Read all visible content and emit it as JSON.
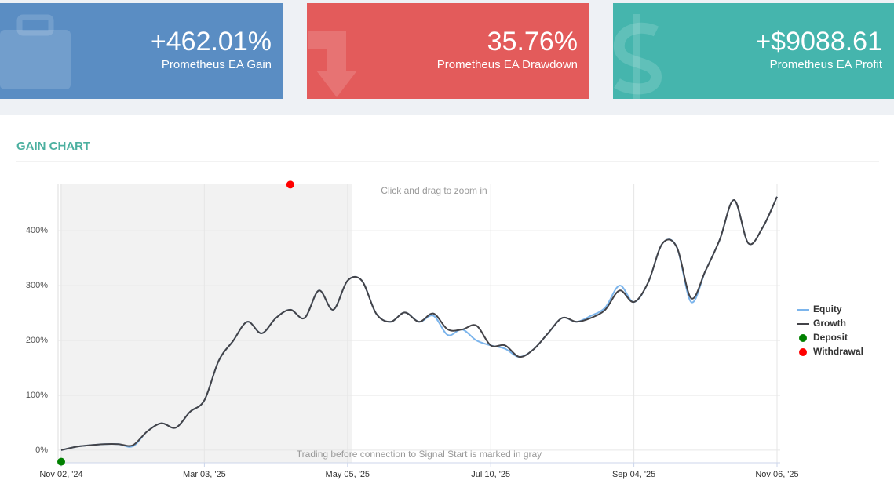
{
  "cards": [
    {
      "value": "+462.01%",
      "label": "Prometheus EA Gain",
      "color": "#5a8dc3"
    },
    {
      "value": "35.76%",
      "label": "Prometheus EA Drawdown",
      "color": "#e35b5b"
    },
    {
      "value": "+$9088.61",
      "label": "Prometheus EA Profit",
      "color": "#45b5ad"
    }
  ],
  "chart_data": {
    "type": "line",
    "title": "GAIN CHART",
    "annotations": [
      "Click and drag to zoom in",
      "Trading before connection to Signal Start is marked in gray"
    ],
    "categories": [
      "Nov 02, '24",
      null,
      null,
      null,
      null,
      null,
      null,
      null,
      null,
      null,
      "Mar 03, '25",
      null,
      null,
      null,
      null,
      null,
      null,
      null,
      null,
      null,
      "May 05, '25",
      null,
      null,
      null,
      null,
      null,
      null,
      null,
      null,
      null,
      "Jul 10, '25",
      null,
      null,
      null,
      null,
      null,
      null,
      null,
      null,
      null,
      "Sep 04, '25",
      null,
      null,
      null,
      null,
      null,
      null,
      null,
      null,
      null,
      "Nov 06, '25"
    ],
    "shaded": [
      0,
      20.3
    ],
    "series": [
      {
        "name": "Equity",
        "color": "#7cb5ec",
        "style": "line",
        "values": [
          0,
          6,
          9,
          11,
          11,
          7,
          34,
          49,
          41,
          70,
          91,
          163,
          199,
          234,
          213,
          241,
          256,
          241,
          291,
          256,
          309,
          309,
          249,
          234,
          251,
          234,
          245,
          210,
          220,
          200,
          191,
          185,
          170,
          184,
          213,
          241,
          234,
          245,
          260,
          300,
          270,
          306,
          377,
          370,
          270,
          327,
          384,
          456,
          377,
          406,
          462
        ]
      },
      {
        "name": "Growth",
        "color": "#434348",
        "style": "line",
        "values": [
          0,
          6,
          9,
          11,
          11,
          9,
          34,
          49,
          41,
          70,
          91,
          163,
          199,
          234,
          213,
          241,
          256,
          241,
          291,
          256,
          309,
          309,
          249,
          234,
          251,
          234,
          249,
          220,
          220,
          227,
          191,
          191,
          170,
          184,
          213,
          241,
          234,
          241,
          256,
          291,
          270,
          306,
          377,
          370,
          277,
          327,
          384,
          456,
          377,
          406,
          462
        ]
      },
      {
        "name": "Deposit",
        "color": "#008000",
        "style": "marker",
        "values": [
          -21,
          null,
          null,
          null,
          null,
          null,
          null,
          null,
          null,
          null,
          null,
          null,
          null,
          null,
          null,
          null,
          null,
          null,
          null,
          null,
          null,
          null,
          null,
          null,
          null,
          null,
          null,
          null,
          null,
          null,
          null,
          null,
          null,
          null,
          null,
          null,
          null,
          null,
          null,
          null,
          null,
          null,
          null,
          null,
          null,
          null,
          null,
          null,
          null,
          null,
          null
        ]
      },
      {
        "name": "Withdrawal",
        "color": "#ff0000",
        "style": "marker",
        "values": [
          null,
          null,
          null,
          null,
          null,
          null,
          null,
          null,
          null,
          null,
          null,
          null,
          null,
          null,
          null,
          null,
          484,
          null,
          null,
          null,
          null,
          null,
          null,
          null,
          null,
          null,
          null,
          null,
          null,
          null,
          null,
          null,
          null,
          null,
          null,
          null,
          null,
          null,
          null,
          null,
          null,
          null,
          null,
          null,
          null,
          null,
          null,
          null,
          null,
          null,
          null
        ]
      }
    ],
    "ylim": [
      -23,
      486
    ],
    "yticks": [
      {
        "value": 0,
        "label": "0%"
      },
      {
        "value": 100,
        "label": "100%"
      },
      {
        "value": 200,
        "label": "200%"
      },
      {
        "value": 300,
        "label": "300%"
      },
      {
        "value": 400,
        "label": "400%"
      }
    ],
    "grid": true,
    "legend": "right"
  }
}
